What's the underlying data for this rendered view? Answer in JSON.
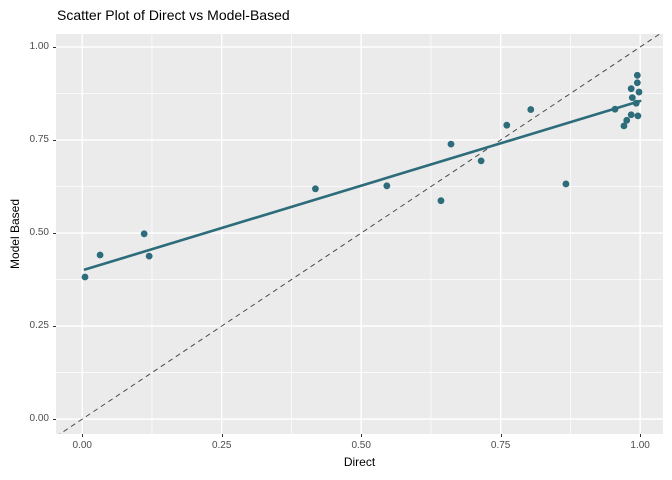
{
  "chart_data": {
    "type": "scatter",
    "title": "Scatter Plot of Direct vs Model-Based",
    "xlabel": "Direct",
    "ylabel": "Model Based",
    "xlim": [
      -0.047,
      1.041
    ],
    "ylim": [
      -0.04,
      1.035
    ],
    "x_tick_values": [
      0,
      0.25,
      0.5,
      0.75,
      1.0
    ],
    "x_tick_labels": [
      "0.00",
      "0.25",
      "0.50",
      "0.75",
      "1.00"
    ],
    "y_tick_values": [
      0,
      0.25,
      0.5,
      0.75,
      1.0
    ],
    "y_tick_labels": [
      "0.00",
      "0.25",
      "0.50",
      "0.75",
      "1.00"
    ],
    "x_minor_ticks": [
      0.125,
      0.375,
      0.625,
      0.875
    ],
    "y_minor_ticks": [
      0.125,
      0.375,
      0.625,
      0.875
    ],
    "grid": "major-and-minor",
    "legend": "none",
    "points": [
      [
        0.005,
        0.382
      ],
      [
        0.032,
        0.441
      ],
      [
        0.111,
        0.498
      ],
      [
        0.12,
        0.438
      ],
      [
        0.418,
        0.619
      ],
      [
        0.546,
        0.627
      ],
      [
        0.643,
        0.587
      ],
      [
        0.661,
        0.739
      ],
      [
        0.715,
        0.694
      ],
      [
        0.761,
        0.79
      ],
      [
        0.804,
        0.832
      ],
      [
        0.867,
        0.632
      ],
      [
        0.955,
        0.833
      ],
      [
        0.971,
        0.788
      ],
      [
        0.976,
        0.803
      ],
      [
        0.984,
        0.818
      ],
      [
        0.996,
        0.815
      ],
      [
        0.986,
        0.864
      ],
      [
        0.993,
        0.849
      ],
      [
        0.984,
        0.888
      ],
      [
        0.998,
        0.879
      ],
      [
        0.995,
        0.904
      ],
      [
        0.995,
        0.924
      ]
    ],
    "fit_line": {
      "x1": 0.005,
      "y1": 0.402,
      "x2": 1.0,
      "y2": 0.855
    },
    "identity_line": {
      "slope": 1,
      "intercept": 0,
      "style": "dashed"
    },
    "colors": {
      "point": "#2D6C7A",
      "fit_line": "#2D6C7A",
      "identity_line": "#4a4a4a",
      "panel_bg": "#EBEBEB",
      "grid_major": "#FFFFFF",
      "grid_minor": "#FFFFFF",
      "tick_text": "#4D4D4D",
      "tick_mark": "#333333",
      "title_text": "#000000"
    }
  }
}
